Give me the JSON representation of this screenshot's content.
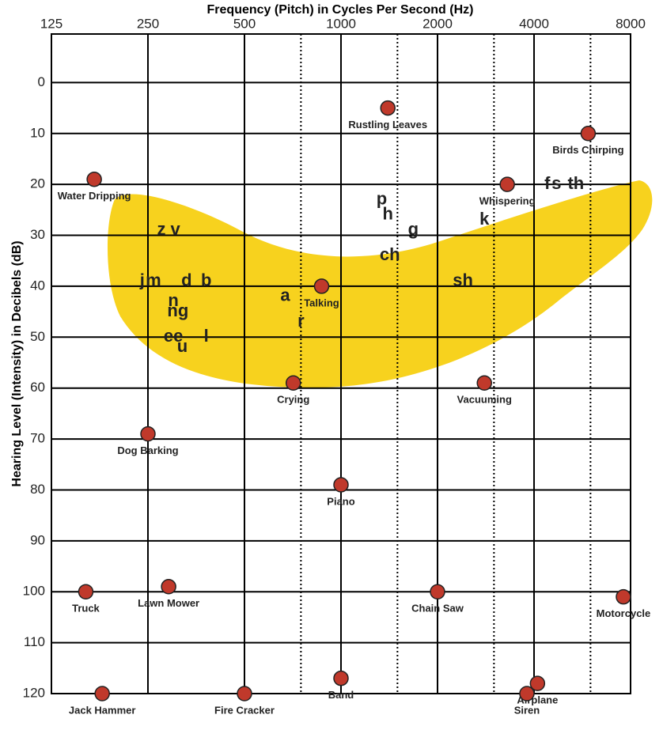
{
  "chart_data": {
    "type": "audiogram",
    "title": "Frequency (Pitch) in Cycles Per Second (Hz)",
    "ylabel": "Hearing Level (Intensity) in Decibels (dB)",
    "xscale": "log",
    "xlim": [
      125,
      8000
    ],
    "xticks": [
      125,
      250,
      500,
      1000,
      2000,
      4000,
      8000
    ],
    "dotted_x": [
      750,
      1500,
      3000,
      6000
    ],
    "ylim": [
      -10,
      120
    ],
    "yticks": [
      0,
      10,
      20,
      30,
      40,
      50,
      60,
      70,
      80,
      90,
      100,
      110,
      120
    ],
    "y_inverted": true,
    "grid": true,
    "sounds": {
      "color": "#c0392b",
      "labels": [
        "Rustling Leaves",
        "Birds Chirping",
        "Water Dripping",
        "Whispering",
        "Talking",
        "Crying",
        "Vacuuming",
        "Dog Barking",
        "Piano",
        "Truck",
        "Lawn Mower",
        "Chain Saw",
        "Motorcycle",
        "Jack Hammer",
        "Fire Cracker",
        "Band",
        "Airplane",
        "Siren"
      ],
      "x": [
        1400,
        5900,
        170,
        3300,
        870,
        710,
        2800,
        250,
        1000,
        160,
        290,
        2000,
        7600,
        180,
        500,
        1000,
        4100,
        3800
      ],
      "y": [
        5,
        10,
        19,
        20,
        40,
        59,
        59,
        69,
        79,
        100,
        99,
        100,
        101,
        120,
        120,
        117,
        118,
        120
      ]
    },
    "speech_sounds": {
      "color": "#111111",
      "band_color": "#f7d21e",
      "labels": [
        "z v",
        "j",
        "m",
        "d",
        "b",
        "n",
        "ng",
        "ee",
        "l",
        "u",
        "a",
        "r",
        "p",
        "h",
        "g",
        "ch",
        "sh",
        "k",
        "f",
        "s",
        "th"
      ],
      "x": [
        290,
        240,
        260,
        330,
        380,
        300,
        310,
        300,
        380,
        320,
        670,
        750,
        1340,
        1400,
        1680,
        1420,
        2400,
        2800,
        4400,
        4700,
        5400
      ],
      "y": [
        29,
        39,
        39,
        39,
        39,
        43,
        45,
        50,
        50,
        52,
        42,
        47,
        23,
        26,
        29,
        34,
        39,
        27,
        20,
        20,
        20
      ]
    }
  }
}
